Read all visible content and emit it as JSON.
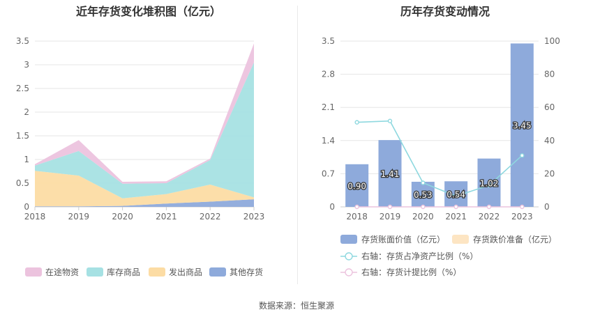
{
  "footer": {
    "source": "数据来源：恒生聚源"
  },
  "chart_data": [
    {
      "type": "area",
      "stacked": true,
      "title": "近年存货变化堆积图（亿元）",
      "categories": [
        "2018",
        "2019",
        "2020",
        "2021",
        "2022",
        "2023"
      ],
      "ylim": [
        0,
        3.5
      ],
      "yticks": [
        "0",
        "0.5",
        "1",
        "1.5",
        "2",
        "2.5",
        "3",
        "3.5"
      ],
      "grid": true,
      "legend_position": "bottom",
      "series": [
        {
          "name": "其他存货",
          "color": "#8eaadb",
          "values": [
            0.01,
            0.01,
            0.02,
            0.07,
            0.11,
            0.16
          ]
        },
        {
          "name": "发出商品",
          "color": "#fcdca4",
          "values": [
            0.75,
            0.65,
            0.16,
            0.2,
            0.36,
            0.04
          ]
        },
        {
          "name": "库存商品",
          "color": "#a6e1e3",
          "values": [
            0.11,
            0.52,
            0.31,
            0.23,
            0.52,
            2.85
          ]
        },
        {
          "name": "在途物资",
          "color": "#ecc3de",
          "values": [
            0.03,
            0.23,
            0.04,
            0.04,
            0.03,
            0.4
          ]
        }
      ],
      "legend_order": [
        "在途物资",
        "库存商品",
        "发出商品",
        "其他存货"
      ]
    },
    {
      "type": "bar",
      "title": "历年存货变动情况",
      "categories": [
        "2018",
        "2019",
        "2020",
        "2021",
        "2022",
        "2023"
      ],
      "ylim": [
        0,
        3.5
      ],
      "yticks": [
        "0",
        "0.7",
        "1.4",
        "2.1",
        "2.8",
        "3.5"
      ],
      "y2lim": [
        0,
        100
      ],
      "y2ticks": [
        "0",
        "20",
        "40",
        "60",
        "80",
        "100"
      ],
      "grid": true,
      "legend_position": "bottom",
      "series": [
        {
          "name": "存货账面价值（亿元）",
          "kind": "bar",
          "axis": "left",
          "color": "#8eaadb",
          "values": [
            0.9,
            1.41,
            0.53,
            0.54,
            1.02,
            3.45
          ],
          "labels": [
            "0.90",
            "1.41",
            "0.53",
            "0.54",
            "1.02",
            "3.45"
          ]
        },
        {
          "name": "存货跌价准备（亿元）",
          "kind": "bar",
          "axis": "left",
          "color": "#fde5c3",
          "values": [
            0,
            0,
            0,
            0,
            0,
            0
          ]
        },
        {
          "name": "右轴：存货占净资产比例（%）",
          "kind": "line",
          "axis": "right",
          "color": "#8ed8df",
          "values": [
            51,
            51.8,
            14.5,
            6.5,
            13,
            31
          ]
        },
        {
          "name": "右轴：存货计提比例（%）",
          "kind": "line",
          "axis": "right",
          "color": "#ecc3de",
          "values": [
            0,
            0,
            0,
            0,
            0,
            0
          ]
        }
      ]
    }
  ]
}
